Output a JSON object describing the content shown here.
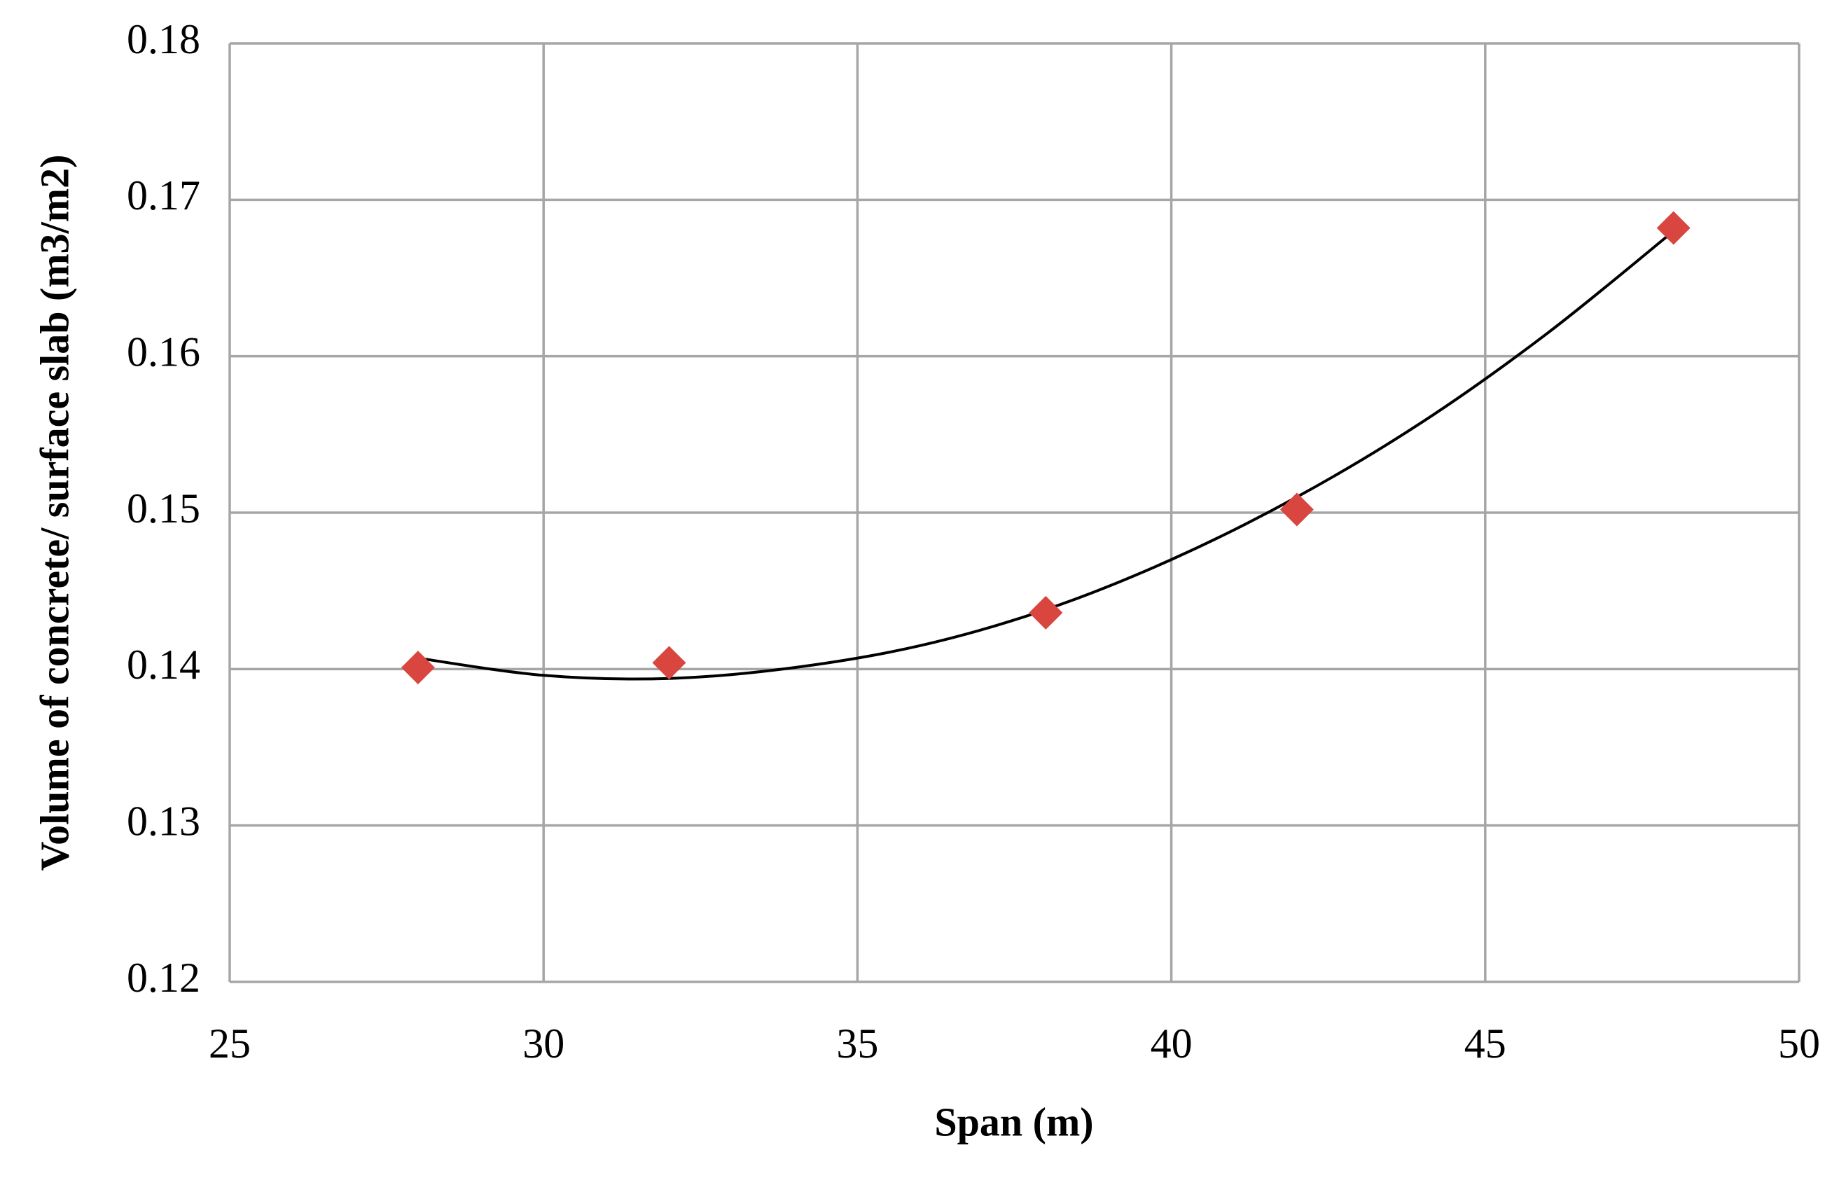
{
  "chart_data": {
    "type": "scatter",
    "x_label": "Span (m)",
    "y_label": "Volume of concrete/ surface slab (m3/m2)",
    "series": [
      {
        "color": "#d9463f",
        "marker": "diamond",
        "x": [
          28,
          32,
          38,
          42,
          48
        ],
        "values": [
          0.1401,
          0.1404,
          0.1436,
          0.1502,
          0.1682
        ]
      }
    ],
    "trendline": {
      "color": "#000000",
      "x": [
        28,
        30,
        32,
        34,
        36,
        38,
        40,
        42,
        44,
        46,
        48
      ],
      "values": [
        0.1407,
        0.1396,
        0.1394,
        0.1401,
        0.1415,
        0.1438,
        0.147,
        0.151,
        0.1558,
        0.1615,
        0.168
      ]
    },
    "xlim": [
      25,
      50
    ],
    "xticks": [
      25,
      30,
      35,
      40,
      45,
      50
    ],
    "ylim": [
      0.12,
      0.18
    ],
    "yticks": [
      0.12,
      0.13,
      0.14,
      0.15,
      0.16,
      0.17,
      0.18
    ],
    "grid": true
  }
}
